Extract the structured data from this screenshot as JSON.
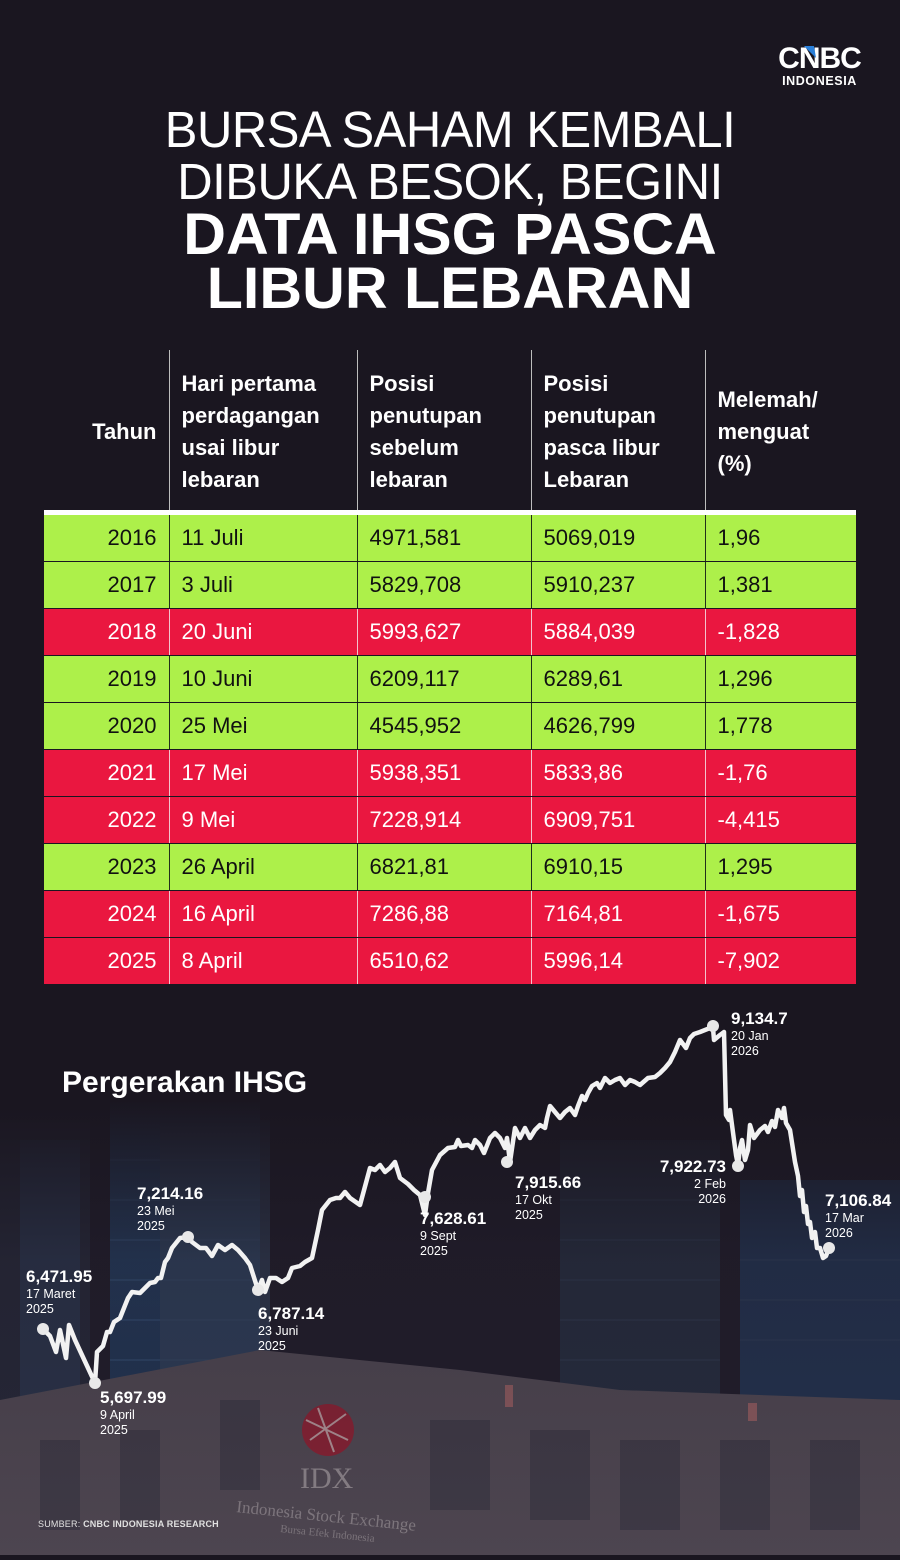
{
  "brand": {
    "logo_main": "CNBC",
    "logo_sub": "INDONESIA",
    "accent_blue": "#2a7fd9"
  },
  "title": {
    "line1": "BURSA SAHAM KEMBALI",
    "line2": "DIBUKA BESOK, BEGINI",
    "line3": "DATA IHSG PASCA",
    "line4": "LIBUR LEBARAN"
  },
  "table": {
    "headers": [
      "Tahun",
      "Hari pertama perdagangan usai libur lebaran",
      "Posisi penutupan sebelum lebaran",
      "Posisi penutupan pasca libur Lebaran",
      "Melemah/ menguat (%)"
    ],
    "colors": {
      "up": "#adf04a",
      "down": "#ea1740"
    },
    "rows": [
      {
        "year": "2016",
        "day": "11 Juli",
        "before": "4971,581",
        "after": "5069,019",
        "change": "1,96",
        "trend": "up"
      },
      {
        "year": "2017",
        "day": "3 Juli",
        "before": "5829,708",
        "after": "5910,237",
        "change": "1,381",
        "trend": "up"
      },
      {
        "year": "2018",
        "day": "20 Juni",
        "before": "5993,627",
        "after": "5884,039",
        "change": "-1,828",
        "trend": "down"
      },
      {
        "year": "2019",
        "day": "10 Juni",
        "before": "6209,117",
        "after": "6289,61",
        "change": "1,296",
        "trend": "up"
      },
      {
        "year": "2020",
        "day": "25 Mei",
        "before": "4545,952",
        "after": "4626,799",
        "change": "1,778",
        "trend": "up"
      },
      {
        "year": "2021",
        "day": "17 Mei",
        "before": "5938,351",
        "after": "5833,86",
        "change": "-1,76",
        "trend": "down"
      },
      {
        "year": "2022",
        "day": "9 Mei",
        "before": "7228,914",
        "after": "6909,751",
        "change": "-4,415",
        "trend": "down"
      },
      {
        "year": "2023",
        "day": "26 April",
        "before": "6821,81",
        "after": "6910,15",
        "change": "1,295",
        "trend": "up"
      },
      {
        "year": "2024",
        "day": "16 April",
        "before": "7286,88",
        "after": "7164,81",
        "change": "-1,675",
        "trend": "down"
      },
      {
        "year": "2025",
        "day": "8 April",
        "before": "6510,62",
        "after": "5996,14",
        "change": "-7,902",
        "trend": "down"
      }
    ]
  },
  "chart": {
    "title": "Pergerakan IHSG",
    "annotations": [
      {
        "value": "6,471.95",
        "date1": "17 Maret",
        "date2": "2025"
      },
      {
        "value": "5,697.99",
        "date1": "9 April",
        "date2": "2025"
      },
      {
        "value": "7,214.16",
        "date1": "23 Mei",
        "date2": "2025"
      },
      {
        "value": "6,787.14",
        "date1": "23 Juni",
        "date2": "2025"
      },
      {
        "value": "7,628.61",
        "date1": "9 Sept",
        "date2": "2025"
      },
      {
        "value": "7,915.66",
        "date1": "17 Okt",
        "date2": "2025"
      },
      {
        "value": "9,134.7",
        "date1": "20 Jan",
        "date2": "2026"
      },
      {
        "value": "7,922.73",
        "date1": "2 Feb",
        "date2": "2026"
      },
      {
        "value": "7,106.84",
        "date1": "17 Mar",
        "date2": "2026"
      }
    ]
  },
  "chart_data": [
    {
      "type": "table",
      "title": "Bursa Saham Kembali Dibuka Besok, Begini Data IHSG Pasca Libur Lebaran",
      "columns": [
        "Tahun",
        "Hari pertama perdagangan usai libur lebaran",
        "Posisi penutupan sebelum lebaran",
        "Posisi penutupan pasca libur Lebaran",
        "Melemah/menguat (%)"
      ],
      "rows": [
        [
          2016,
          "11 Juli",
          4971.581,
          5069.019,
          1.96
        ],
        [
          2017,
          "3 Juli",
          5829.708,
          5910.237,
          1.381
        ],
        [
          2018,
          "20 Juni",
          5993.627,
          5884.039,
          -1.828
        ],
        [
          2019,
          "10 Juni",
          6209.117,
          6289.61,
          1.296
        ],
        [
          2020,
          "25 Mei",
          4545.952,
          4626.799,
          1.778
        ],
        [
          2021,
          "17 Mei",
          5938.351,
          5833.86,
          -1.76
        ],
        [
          2022,
          "9 Mei",
          7228.914,
          6909.751,
          -4.415
        ],
        [
          2023,
          "26 April",
          6821.81,
          6910.15,
          1.295
        ],
        [
          2024,
          "16 April",
          7286.88,
          7164.81,
          -1.675
        ],
        [
          2025,
          "8 April",
          6510.62,
          5996.14,
          -7.902
        ]
      ]
    },
    {
      "type": "line",
      "title": "Pergerakan IHSG",
      "x": [
        "17 Mar 2025",
        "9 Apr 2025",
        "23 Mei 2025",
        "23 Jun 2025",
        "9 Sep 2025",
        "17 Okt 2025",
        "20 Jan 2026",
        "2 Feb 2026",
        "17 Mar 2026"
      ],
      "series": [
        {
          "name": "IHSG",
          "values": [
            6471.95,
            5697.99,
            7214.16,
            6787.14,
            7628.61,
            7915.66,
            9134.7,
            7922.73,
            7106.84
          ]
        }
      ],
      "xlabel": "",
      "ylabel": "",
      "grid": false,
      "legend": "none"
    }
  ],
  "source": {
    "label": "SUMBER:",
    "value": "CNBC INDONESIA RESEARCH"
  }
}
